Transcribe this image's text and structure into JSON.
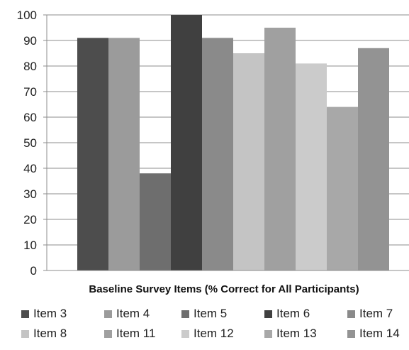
{
  "chart_data": {
    "type": "bar",
    "title": "",
    "xlabel": "Baseline Survey Items (% Correct for All Participants)",
    "ylabel": "",
    "ylim": [
      0,
      100
    ],
    "yticks": [
      0,
      10,
      20,
      30,
      40,
      50,
      60,
      70,
      80,
      90,
      100
    ],
    "grid": true,
    "legend_position": "bottom",
    "series": [
      {
        "name": "Item 3",
        "value": 91,
        "color": "#4d4d4d"
      },
      {
        "name": "Item 4",
        "value": 91,
        "color": "#9b9b9b"
      },
      {
        "name": "Item 5",
        "value": 38,
        "color": "#6e6e6e"
      },
      {
        "name": "Item 6",
        "value": 100,
        "color": "#404040"
      },
      {
        "name": "Item 7",
        "value": 91,
        "color": "#8a8a8a"
      },
      {
        "name": "Item 8",
        "value": 85,
        "color": "#c4c4c4"
      },
      {
        "name": "Item 11",
        "value": 95,
        "color": "#a0a0a0"
      },
      {
        "name": "Item 12",
        "value": 81,
        "color": "#cbcbcb"
      },
      {
        "name": "Item 13",
        "value": 64,
        "color": "#a8a8a8"
      },
      {
        "name": "Item 14",
        "value": 87,
        "color": "#939393"
      }
    ]
  }
}
